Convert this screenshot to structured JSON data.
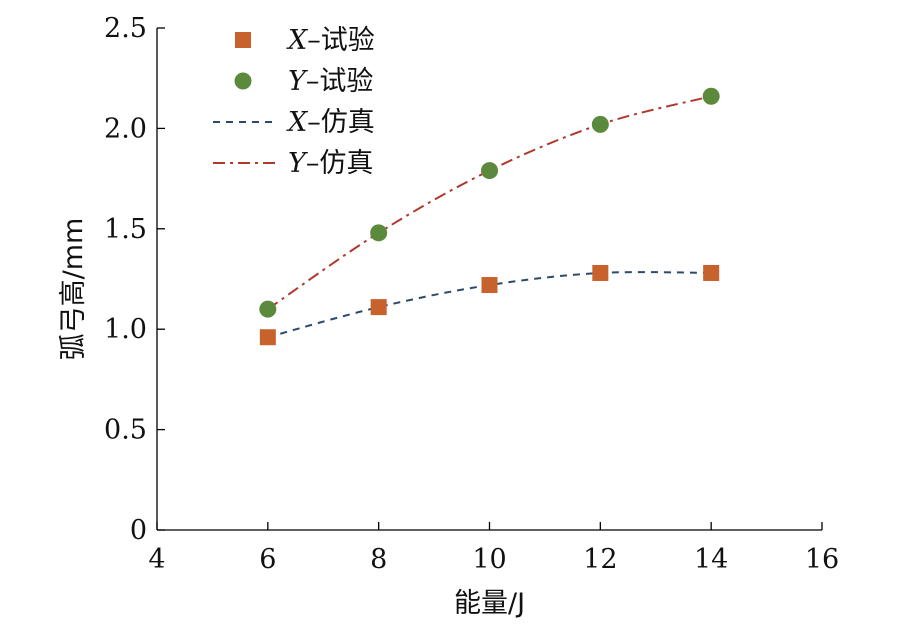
{
  "chart_data": {
    "type": "line",
    "xlabel": "能量/J",
    "ylabel": "弧弓高/mm",
    "xlim": [
      4,
      16
    ],
    "ylim": [
      0,
      2.5
    ],
    "xticks": [
      4,
      6,
      8,
      10,
      12,
      14,
      16
    ],
    "yticks": [
      0,
      0.5,
      1.0,
      1.5,
      2.0,
      2.5
    ],
    "xtick_labels": [
      "4",
      "6",
      "8",
      "10",
      "12",
      "14",
      "16"
    ],
    "ytick_labels": [
      "0",
      "0.5",
      "1.0",
      "1.5",
      "2.0",
      "2.5"
    ],
    "grid": false,
    "legend_position": "top-left",
    "x": [
      6,
      8,
      10,
      12,
      14
    ],
    "series": [
      {
        "name": "X–试验",
        "name_var": "X",
        "name_rest": "–试验",
        "kind": "scatter",
        "marker": "square",
        "color": "#C8622D",
        "values": [
          0.96,
          1.11,
          1.22,
          1.28,
          1.28
        ]
      },
      {
        "name": "Y–试验",
        "name_var": "Y",
        "name_rest": "–试验",
        "kind": "scatter",
        "marker": "circle",
        "color": "#5B8A3C",
        "values": [
          1.1,
          1.48,
          1.79,
          2.02,
          2.16
        ]
      },
      {
        "name": "X–仿真",
        "name_var": "X",
        "name_rest": "–仿真",
        "kind": "line",
        "dash": "dash",
        "color": "#2E4A6B",
        "values": [
          0.96,
          1.11,
          1.22,
          1.28,
          1.28
        ]
      },
      {
        "name": "Y–仿真",
        "name_var": "Y",
        "name_rest": "–仿真",
        "kind": "line",
        "dash": "dashdot",
        "color": "#B0392E",
        "values": [
          1.1,
          1.48,
          1.79,
          2.02,
          2.16
        ]
      }
    ]
  }
}
